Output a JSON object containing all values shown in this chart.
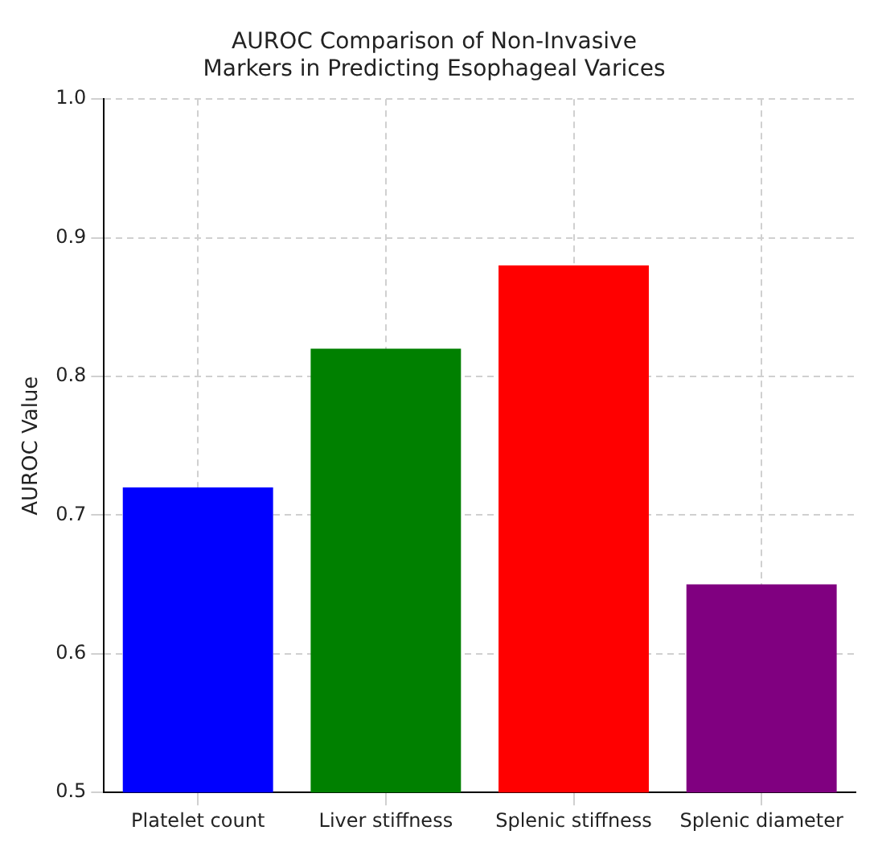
{
  "chart_data": {
    "type": "bar",
    "title": "AUROC Comparison of Non-Invasive Markers in Predicting Esophageal Varices",
    "ylabel": "AUROC Value",
    "categories": [
      "Platelet count",
      "Liver stiffness",
      "Splenic stiffness",
      "Splenic diameter"
    ],
    "values": [
      0.72,
      0.82,
      0.88,
      0.65
    ],
    "colors": [
      "#0000ff",
      "#008000",
      "#ff0000",
      "#800080"
    ],
    "ylim": [
      0.5,
      1.0
    ],
    "yticks": [
      0.5,
      0.6,
      0.7,
      0.8,
      0.9,
      {
        "value": 1,
        "label": "1.0"
      }
    ],
    "grid": true
  }
}
